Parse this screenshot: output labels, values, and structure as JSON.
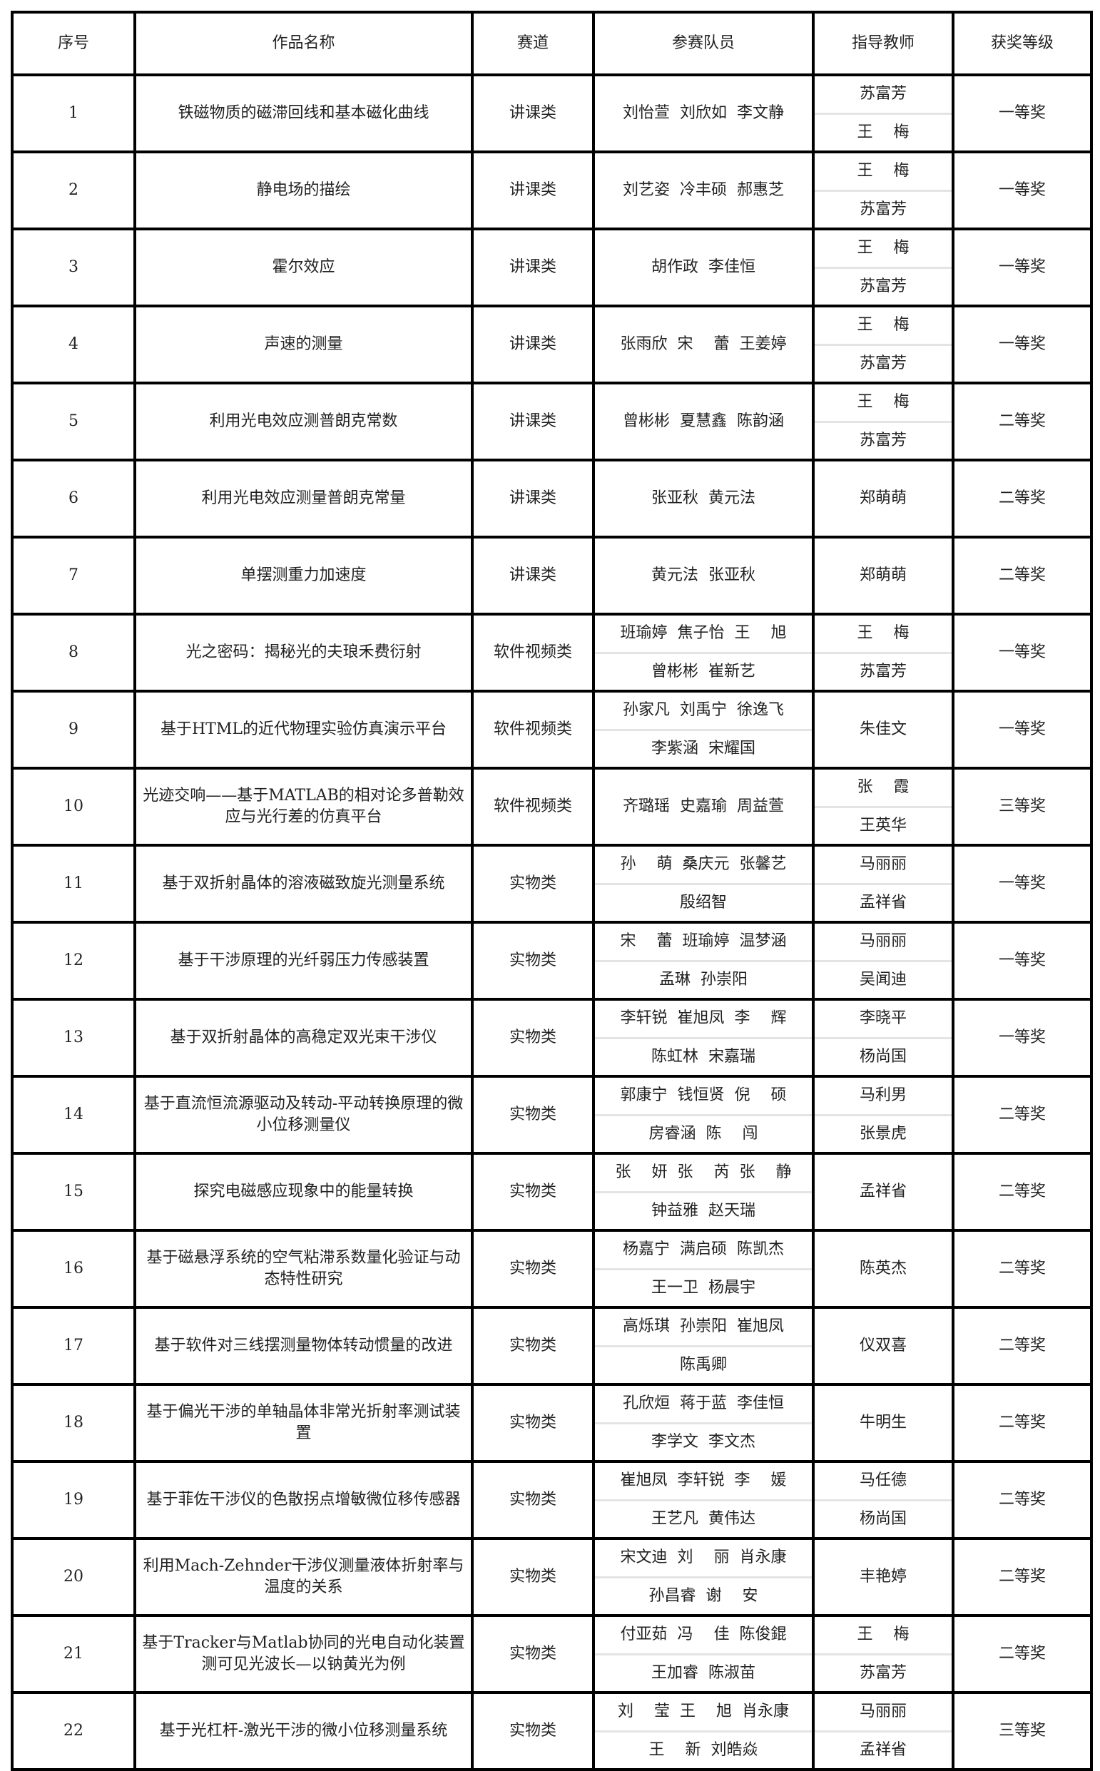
{
  "headers": [
    "序号",
    "作品名称",
    "赛道",
    "参赛队员",
    "指导教师",
    "获奖等级"
  ],
  "rows": [
    {
      "no": "1",
      "title": "铁磁物质的磁滞回线和基本磁化曲线",
      "track": "讲课类",
      "members": [
        "刘怡萱  刘欣如  李文静"
      ],
      "teachers": [
        "苏富芳",
        "王　 梅"
      ],
      "award": "一等奖"
    },
    {
      "no": "2",
      "title": "静电场的描绘",
      "track": "讲课类",
      "members": [
        "刘艺姿  冷丰硕  郝惠芝"
      ],
      "teachers": [
        "王　 梅",
        "苏富芳"
      ],
      "award": "一等奖"
    },
    {
      "no": "3",
      "title": "霍尔效应",
      "track": "讲课类",
      "members": [
        "胡作政  李佳恒"
      ],
      "teachers": [
        "王　 梅",
        "苏富芳"
      ],
      "award": "一等奖"
    },
    {
      "no": "4",
      "title": "声速的测量",
      "track": "讲课类",
      "members": [
        "张雨欣  宋　 蕾  王姜婷"
      ],
      "teachers": [
        "王　 梅",
        "苏富芳"
      ],
      "award": "一等奖"
    },
    {
      "no": "5",
      "title": "利用光电效应测普朗克常数",
      "track": "讲课类",
      "members": [
        "曾彬彬  夏慧鑫  陈韵涵"
      ],
      "teachers": [
        "王　 梅",
        "苏富芳"
      ],
      "award": "二等奖"
    },
    {
      "no": "6",
      "title": "利用光电效应测量普朗克常量",
      "track": "讲课类",
      "members": [
        "张亚秋  黄元法"
      ],
      "teachers": [
        "郑萌萌"
      ],
      "award": "二等奖"
    },
    {
      "no": "7",
      "title": "单摆测重力加速度",
      "track": "讲课类",
      "members": [
        "黄元法  张亚秋"
      ],
      "teachers": [
        "郑萌萌"
      ],
      "award": "二等奖"
    },
    {
      "no": "8",
      "title": "光之密码：揭秘光的夫琅禾费衍射",
      "track": "软件视频类",
      "members": [
        "班瑜婷  焦子怡  王　 旭",
        "曾彬彬  崔新艺"
      ],
      "teachers": [
        "王　 梅",
        "苏富芳"
      ],
      "award": "一等奖"
    },
    {
      "no": "9",
      "title": "基于HTML的近代物理实验仿真演示平台",
      "track": "软件视频类",
      "members": [
        "孙家凡  刘禹宁  徐逸飞",
        "李紫涵  宋耀国"
      ],
      "teachers": [
        "朱佳文"
      ],
      "award": "一等奖"
    },
    {
      "no": "10",
      "title": "光迹交响——基于MATLAB的相对论多普勒效应与光行差的仿真平台",
      "track": "软件视频类",
      "members": [
        "齐璐瑶  史嘉瑜  周益萱"
      ],
      "teachers": [
        "张　 霞",
        "王英华"
      ],
      "award": "三等奖"
    },
    {
      "no": "11",
      "title": "基于双折射晶体的溶液磁致旋光测量系统",
      "track": "实物类",
      "members": [
        "孙　 萌  桑庆元  张馨艺",
        "殷绍智"
      ],
      "teachers": [
        "马丽丽",
        "孟祥省"
      ],
      "award": "一等奖"
    },
    {
      "no": "12",
      "title": "基于干涉原理的光纤弱压力传感装置",
      "track": "实物类",
      "members": [
        "宋　 蕾  班瑜婷  温梦涵",
        "孟琳  孙崇阳"
      ],
      "teachers": [
        "马丽丽",
        "吴闻迪"
      ],
      "award": "一等奖"
    },
    {
      "no": "13",
      "title": "基于双折射晶体的高稳定双光束干涉仪",
      "track": "实物类",
      "members": [
        "李轩锐  崔旭凤  李　 辉",
        "陈虹林  宋嘉瑞"
      ],
      "teachers": [
        "李晓平",
        "杨尚国"
      ],
      "award": "一等奖"
    },
    {
      "no": "14",
      "title": "基于直流恒流源驱动及转动-平动转换原理的微小位移测量仪",
      "track": "实物类",
      "members": [
        "郭康宁  钱恒贤  倪　 硕",
        "房睿涵  陈　 闯"
      ],
      "teachers": [
        "马利男",
        "张景虎"
      ],
      "award": "二等奖"
    },
    {
      "no": "15",
      "title": "探究电磁感应现象中的能量转换",
      "track": "实物类",
      "members": [
        "张　 妍  张　 芮  张　 静",
        "钟益雅  赵天瑞"
      ],
      "teachers": [
        "孟祥省"
      ],
      "award": "二等奖"
    },
    {
      "no": "16",
      "title": "基于磁悬浮系统的空气粘滞系数量化验证与动态特性研究",
      "track": "实物类",
      "members": [
        "杨嘉宁  满启硕  陈凯杰",
        "王一卫  杨晨宇"
      ],
      "teachers": [
        "陈英杰"
      ],
      "award": "二等奖"
    },
    {
      "no": "17",
      "title": "基于软件对三线摆测量物体转动惯量的改进",
      "track": "实物类",
      "members": [
        "高烁琪  孙崇阳  崔旭凤",
        "陈禹卿"
      ],
      "teachers": [
        "仪双喜"
      ],
      "award": "二等奖"
    },
    {
      "no": "18",
      "title": "基于偏光干涉的单轴晶体非常光折射率测试装置",
      "track": "实物类",
      "members": [
        "孔欣烜  蒋于蓝  李佳恒",
        "李学文  李文杰"
      ],
      "teachers": [
        "牛明生"
      ],
      "award": "二等奖"
    },
    {
      "no": "19",
      "title": "基于菲佐干涉仪的色散拐点增敏微位移传感器",
      "track": "实物类",
      "members": [
        "崔旭凤  李轩锐  李　 媛",
        "王艺凡  黄伟达"
      ],
      "teachers": [
        "马任德",
        "杨尚国"
      ],
      "award": "二等奖"
    },
    {
      "no": "20",
      "title": "利用Mach-Zehnder干涉仪测量液体折射率与温度的关系",
      "track": "实物类",
      "members": [
        "宋文迪  刘　 丽  肖永康",
        "孙昌睿  谢　 安"
      ],
      "teachers": [
        "丰艳婷"
      ],
      "award": "二等奖"
    },
    {
      "no": "21",
      "title": "基于Tracker与Matlab协同的光电自动化装置测可见光波长—以钠黄光为例",
      "track": "实物类",
      "members": [
        "付亚茹  冯　 佳  陈俊錕",
        "王加睿  陈淑苗"
      ],
      "teachers": [
        "王　 梅",
        "苏富芳"
      ],
      "award": "二等奖"
    },
    {
      "no": "22",
      "title": "基于光杠杆-激光干涉的微小位移测量系统",
      "track": "实物类",
      "members": [
        "刘　 莹  王　 旭  肖永康",
        "王　 新  刘皓焱"
      ],
      "teachers": [
        "马丽丽",
        "孟祥省"
      ],
      "award": "三等奖"
    }
  ]
}
